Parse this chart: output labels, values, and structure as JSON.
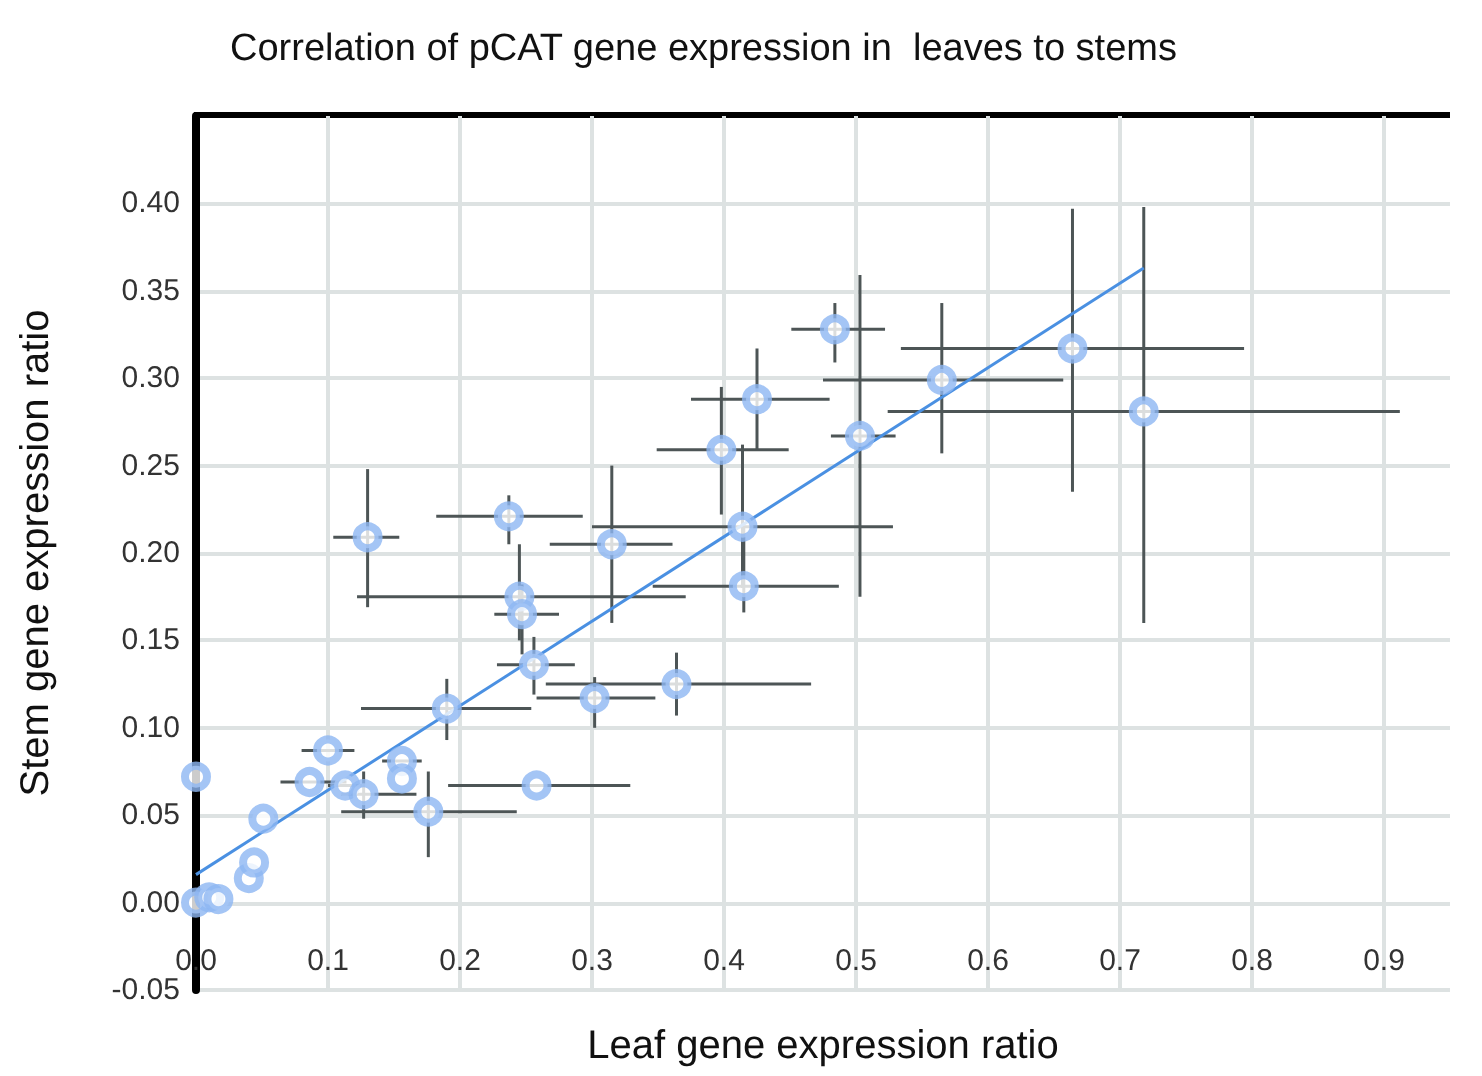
{
  "chart_data": {
    "type": "scatter",
    "title": "Correlation of pCAT gene expression in  leaves to stems",
    "xlabel": "Leaf gene expression ratio",
    "ylabel": "Stem gene expression ratio",
    "xlim": [
      0,
      0.95
    ],
    "ylim": [
      -0.05,
      0.45
    ],
    "xticks": [
      {
        "value": 0,
        "label": "0.0"
      },
      0.1,
      0.2,
      0.3,
      0.4,
      0.5,
      0.6,
      0.7,
      0.8,
      0.9
    ],
    "yticks": [
      {
        "value": -0.05,
        "label": "-0.05"
      },
      {
        "value": 0,
        "label": "0.00"
      },
      {
        "value": 0.05,
        "label": "0.05"
      },
      {
        "value": 0.1,
        "label": "0.10"
      },
      {
        "value": 0.15,
        "label": "0.15"
      },
      {
        "value": 0.2,
        "label": "0.20"
      },
      {
        "value": 0.25,
        "label": "0.25"
      },
      {
        "value": 0.3,
        "label": "0.30"
      },
      {
        "value": 0.35,
        "label": "0.35"
      },
      {
        "value": 0.4,
        "label": "0.40"
      }
    ],
    "grid": true,
    "marker": "circle",
    "series": [
      {
        "color": "#8db6f2",
        "x": [
          0,
          0,
          0.01,
          0.017,
          0.04,
          0.044,
          0.051,
          0.086,
          0.1,
          0.113,
          0.127,
          0.13,
          0.156,
          0.156,
          0.176,
          0.19,
          0.237,
          0.245,
          0.247,
          0.256,
          0.258,
          0.302,
          0.315,
          0.364,
          0.398,
          0.414,
          0.415,
          0.425,
          0.484,
          0.503,
          0.565,
          0.664,
          0.718
        ],
        "values": [
          0.072,
          0,
          0.003,
          0.002,
          0.014,
          0.023,
          0.048,
          0.069,
          0.087,
          0.067,
          0.062,
          0.209,
          0.081,
          0.071,
          0.052,
          0.111,
          0.221,
          0.175,
          0.165,
          0.136,
          0.067,
          0.117,
          0.205,
          0.125,
          0.259,
          0.215,
          0.181,
          0.288,
          0.328,
          0.267,
          0.299,
          0.317,
          0.281
        ],
        "errors": [
          null,
          null,
          null,
          null,
          null,
          null,
          null,
          null,
          null,
          null,
          [
            0.048,
            0.075
          ],
          [
            0.169,
            0.248
          ],
          null,
          null,
          [
            0.026,
            0.075
          ],
          [
            0.093,
            0.128
          ],
          [
            0.205,
            0.233
          ],
          [
            0.15,
            0.205
          ],
          [
            0.142,
            0.182
          ],
          [
            0.119,
            0.152
          ],
          null,
          [
            0.1,
            0.129
          ],
          [
            0.16,
            0.25
          ],
          [
            0.107,
            0.143
          ],
          [
            0.222,
            0.295
          ],
          [
            0.18,
            0.262
          ],
          [
            0.166,
            0.215
          ],
          [
            0.259,
            0.317
          ],
          [
            0.309,
            0.343
          ],
          [
            0.175,
            0.359
          ],
          [
            0.257,
            0.343
          ],
          [
            0.235,
            0.397
          ],
          [
            0.16,
            0.398
          ]
        ],
        "xerrors": [
          null,
          null,
          null,
          null,
          null,
          null,
          null,
          [
            0.064,
            0.114
          ],
          [
            0.08,
            0.12
          ],
          [
            0.1,
            0.126
          ],
          [
            0.11,
            0.167
          ],
          [
            0.104,
            0.154
          ],
          [
            0.141,
            0.171
          ],
          null,
          [
            0.11,
            0.243
          ],
          [
            0.125,
            0.254
          ],
          [
            0.182,
            0.293
          ],
          [
            0.122,
            0.371
          ],
          [
            0.226,
            0.275
          ],
          [
            0.228,
            0.287
          ],
          [
            0.191,
            0.329
          ],
          [
            0.258,
            0.348
          ],
          [
            0.268,
            0.361
          ],
          [
            0.265,
            0.466
          ],
          [
            0.349,
            0.449
          ],
          [
            0.3,
            0.528
          ],
          [
            0.346,
            0.487
          ],
          [
            0.375,
            0.48
          ],
          [
            0.451,
            0.522
          ],
          [
            0.481,
            0.53
          ],
          [
            0.475,
            0.657
          ],
          [
            0.534,
            0.794
          ],
          [
            0.524,
            0.912
          ]
        ]
      },
      {
        "type": "line",
        "marker": "none",
        "color": "#4a90e2",
        "x": [
          0,
          0.718
        ],
        "values": [
          0.016,
          0.363
        ]
      }
    ]
  }
}
